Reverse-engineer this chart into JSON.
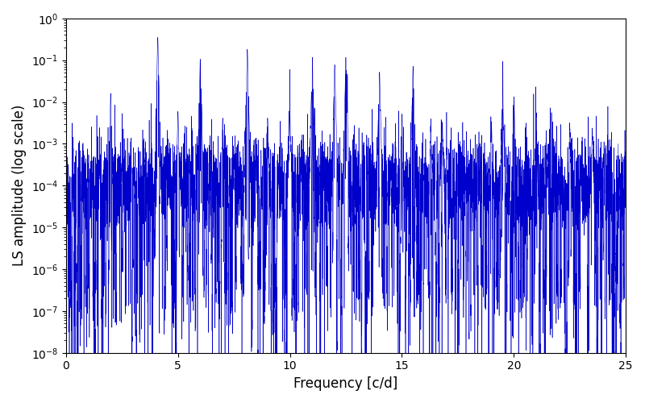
{
  "title": "",
  "xlabel": "Frequency [c/d]",
  "ylabel": "LS amplitude (log scale)",
  "xlim": [
    0,
    25
  ],
  "ylim": [
    1e-08,
    1.0
  ],
  "line_color": "#0000cc",
  "background_color": "#ffffff",
  "figsize": [
    8.0,
    5.0
  ],
  "dpi": 100,
  "xticks": [
    0,
    5,
    10,
    15,
    20,
    25
  ],
  "seed": 17,
  "n_points": 8000
}
